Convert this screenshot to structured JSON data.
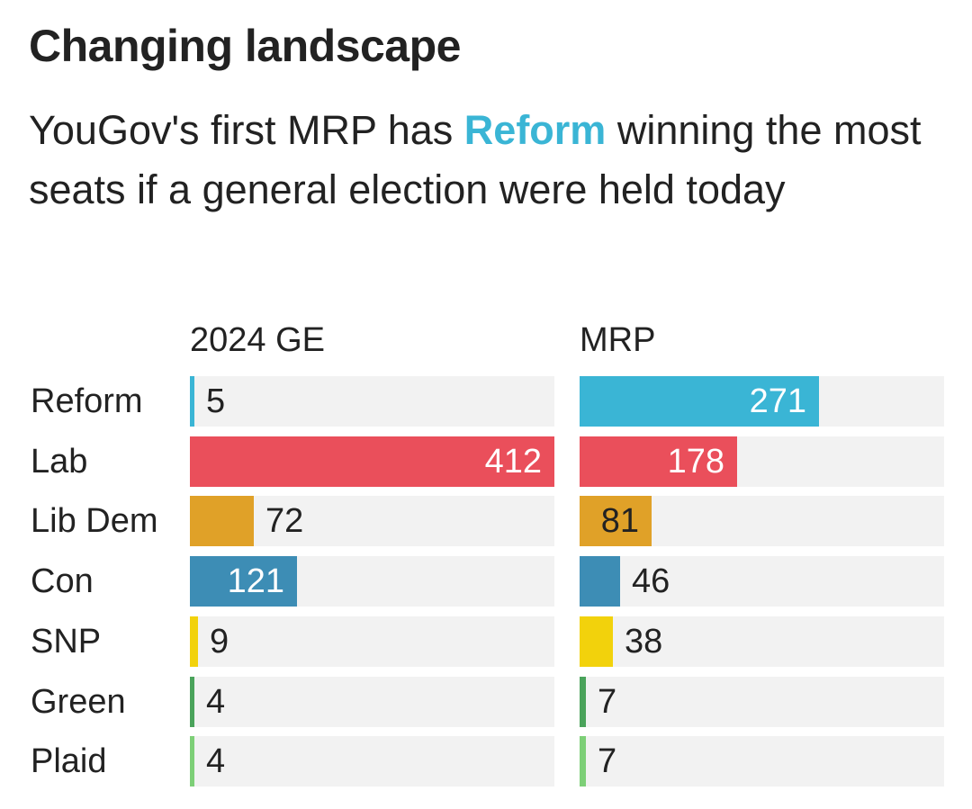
{
  "header": {
    "title": "Changing landscape",
    "subtitle_before": "YouGov's first MRP has ",
    "subtitle_highlight": "Reform",
    "subtitle_after": " winning the most seats if a general election were held today"
  },
  "colors": {
    "Reform": "#3ab5d5",
    "Lab": "#ea4f5b",
    "Lib Dem": "#e0a128",
    "Con": "#3d8db5",
    "SNP": "#f2d20c",
    "Green": "#4aa35b",
    "Plaid": "#7dcf77",
    "track": "#f2f2f2"
  },
  "chart_data": {
    "type": "bar",
    "orientation": "horizontal",
    "categories": [
      "Reform",
      "Lab",
      "Lib Dem",
      "Con",
      "SNP",
      "Green",
      "Plaid"
    ],
    "series": [
      {
        "name": "2024 GE",
        "values": [
          5,
          412,
          72,
          121,
          9,
          4,
          4
        ]
      },
      {
        "name": "MRP",
        "values": [
          271,
          178,
          81,
          46,
          38,
          7,
          7
        ]
      }
    ],
    "xlim": [
      0,
      412
    ],
    "grid": false,
    "legend": "none"
  }
}
